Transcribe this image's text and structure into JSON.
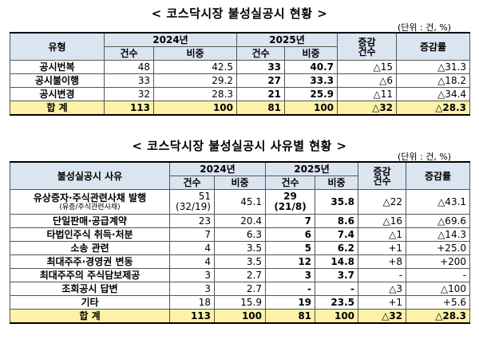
{
  "table1": {
    "title": "< 코스닥시장 불성실공시 현황 >",
    "unit": "(단위 : 건, %)",
    "header": {
      "type": "유형",
      "year1": "2024년",
      "year2": "2025년",
      "change_count_l1": "증감",
      "change_count_l2": "건수",
      "change_rate": "증감률",
      "count": "건수",
      "ratio": "비중"
    },
    "rows": [
      {
        "label": "공시번복",
        "c24": "48",
        "r24": "42.5",
        "c25": "33",
        "r25": "40.7",
        "chg": "△15",
        "rate": "△31.3"
      },
      {
        "label": "공시불이행",
        "c24": "33",
        "r24": "29.2",
        "c25": "27",
        "r25": "33.3",
        "chg": "△6",
        "rate": "△18.2"
      },
      {
        "label": "공시변경",
        "c24": "32",
        "r24": "28.3",
        "c25": "21",
        "r25": "25.9",
        "chg": "△11",
        "rate": "△34.4"
      }
    ],
    "total": {
      "label": "합  계",
      "c24": "113",
      "r24": "100",
      "c25": "81",
      "r25": "100",
      "chg": "△32",
      "rate": "△28.3"
    }
  },
  "table2": {
    "title": "< 코스닥시장 불성실공시 사유별 현황 >",
    "unit": "(단위 : 건, %)",
    "header": {
      "reason": "불성실공시 사유",
      "year1": "2024년",
      "year2": "2025년",
      "change_count_l1": "증감",
      "change_count_l2": "건수",
      "change_rate": "증감률",
      "count": "건수",
      "ratio": "비중"
    },
    "rows": [
      {
        "label": "유상증자·주식관련사채 발행",
        "sub": "(유증/주식관련사채)",
        "c24": "51",
        "c24b": "(32/19)",
        "r24": "45.1",
        "c25": "29",
        "c25b": "(21/8)",
        "r25": "35.8",
        "chg": "△22",
        "rate": "△43.1"
      },
      {
        "label": "단일판매·공급계약",
        "c24": "23",
        "r24": "20.4",
        "c25": "7",
        "r25": "8.6",
        "chg": "△16",
        "rate": "△69.6"
      },
      {
        "label": "타법인주식 취득·처분",
        "c24": "7",
        "r24": "6.3",
        "c25": "6",
        "r25": "7.4",
        "chg": "△1",
        "rate": "△14.3"
      },
      {
        "label": "소송 관련",
        "c24": "4",
        "r24": "3.5",
        "c25": "5",
        "r25": "6.2",
        "chg": "+1",
        "rate": "+25.0"
      },
      {
        "label": "최대주주·경영권 변동",
        "c24": "4",
        "r24": "3.5",
        "c25": "12",
        "r25": "14.8",
        "chg": "+8",
        "rate": "+200"
      },
      {
        "label": "최대주주의 주식담보제공",
        "c24": "3",
        "r24": "2.7",
        "c25": "3",
        "r25": "3.7",
        "chg": "-",
        "rate": "-"
      },
      {
        "label": "조회공시 답변",
        "c24": "3",
        "r24": "2.7",
        "c25": "-",
        "r25": "-",
        "chg": "△3",
        "rate": "△100"
      },
      {
        "label": "기타",
        "c24": "18",
        "r24": "15.9",
        "c25": "19",
        "r25": "23.5",
        "chg": "+1",
        "rate": "+5.6"
      }
    ],
    "total": {
      "label": "합  계",
      "c24": "113",
      "r24": "100",
      "c25": "81",
      "r25": "100",
      "chg": "△32",
      "rate": "△28.3"
    }
  }
}
